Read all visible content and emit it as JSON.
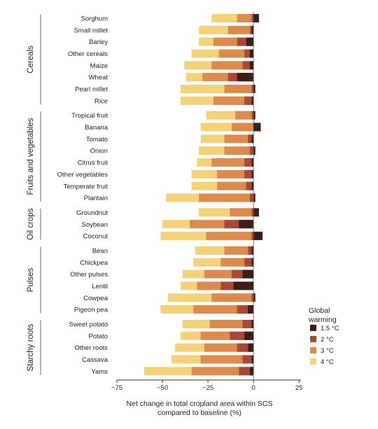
{
  "chart_data": {
    "type": "bar",
    "orientation": "horizontal",
    "stacking": "overlaid",
    "xlabel": "Net change in total cropland area within SCS compared to baseline (%)",
    "xlim": [
      -75,
      28
    ],
    "xticks": [
      -75,
      -50,
      -25,
      0,
      25
    ],
    "grid": false,
    "legend_title": "Global warming",
    "legend_position": "right",
    "series": [
      {
        "name": "1.5 °C",
        "color": "#3a1f17"
      },
      {
        "name": "2 °C",
        "color": "#a8483a"
      },
      {
        "name": "3 °C",
        "color": "#dd8a4e"
      },
      {
        "name": "4 °C",
        "color": "#f3d27a"
      }
    ],
    "groups": [
      {
        "name": "Cereals",
        "crops": [
          {
            "name": "Sorghum",
            "values": [
              3,
              -1,
              -9,
              -23
            ]
          },
          {
            "name": "Small millet",
            "values": [
              -1,
              -2,
              -14,
              -30
            ]
          },
          {
            "name": "Barley",
            "values": [
              -4,
              -9,
              -22,
              -30
            ]
          },
          {
            "name": "Other cereals",
            "values": [
              -2,
              -5,
              -19,
              -34
            ]
          },
          {
            "name": "Maize",
            "values": [
              -2,
              -6,
              -23,
              -38
            ]
          },
          {
            "name": "Wheat",
            "values": [
              -9,
              -14,
              -28,
              -37
            ]
          },
          {
            "name": "Pearl millet",
            "values": [
              1,
              -1,
              -16,
              -40
            ]
          },
          {
            "name": "Rice",
            "values": [
              -1,
              -5,
              -22,
              -40
            ]
          }
        ]
      },
      {
        "name": "Fruits and vegetables",
        "crops": [
          {
            "name": "Tropical fruit",
            "values": [
              1,
              -1,
              -10,
              -26
            ]
          },
          {
            "name": "Banana",
            "values": [
              4,
              1,
              -12,
              -29
            ]
          },
          {
            "name": "Tomato",
            "values": [
              -1,
              -3,
              -16,
              -29
            ]
          },
          {
            "name": "Onion",
            "values": [
              1,
              -2,
              -16,
              -30
            ]
          },
          {
            "name": "Citrus fruit",
            "values": [
              -1,
              -5,
              -23,
              -31
            ]
          },
          {
            "name": "Other vegetables",
            "values": [
              -1,
              -5,
              -20,
              -34
            ]
          },
          {
            "name": "Temperate fruit",
            "values": [
              -1,
              -4,
              -20,
              -34
            ]
          },
          {
            "name": "Plantain",
            "values": [
              1,
              -2,
              -30,
              -48
            ]
          }
        ]
      },
      {
        "name": "Oil crops",
        "crops": [
          {
            "name": "Groundnut",
            "values": [
              3,
              -1,
              -13,
              -30
            ]
          },
          {
            "name": "Soybean",
            "values": [
              -8,
              -16,
              -35,
              -50
            ]
          },
          {
            "name": "Coconut",
            "values": [
              5,
              -1,
              -26,
              -51
            ]
          }
        ]
      },
      {
        "name": "Pulses",
        "crops": [
          {
            "name": "Bean",
            "values": [
              -1,
              -3,
              -16,
              -32
            ]
          },
          {
            "name": "Chickpea",
            "values": [
              -1,
              -5,
              -18,
              -33
            ]
          },
          {
            "name": "Other pulses",
            "values": [
              -6,
              -12,
              -27,
              -39
            ]
          },
          {
            "name": "Lentil",
            "values": [
              -11,
              -18,
              -31,
              -40
            ]
          },
          {
            "name": "Cowpea",
            "values": [
              1,
              -1,
              -23,
              -47
            ]
          },
          {
            "name": "Pigeon pea",
            "values": [
              -3,
              -9,
              -33,
              -51
            ]
          }
        ]
      },
      {
        "name": "Starchy roots",
        "crops": [
          {
            "name": "Sweet potato",
            "values": [
              -1,
              -6,
              -24,
              -39
            ]
          },
          {
            "name": "Potato",
            "values": [
              -5,
              -13,
              -29,
              -40
            ]
          },
          {
            "name": "Other roots",
            "values": [
              -3,
              -9,
              -27,
              -43
            ]
          },
          {
            "name": "Cassava",
            "values": [
              -1,
              -6,
              -29,
              -45
            ]
          },
          {
            "name": "Yams",
            "values": [
              -2,
              -8,
              -34,
              -60
            ]
          }
        ]
      }
    ]
  }
}
